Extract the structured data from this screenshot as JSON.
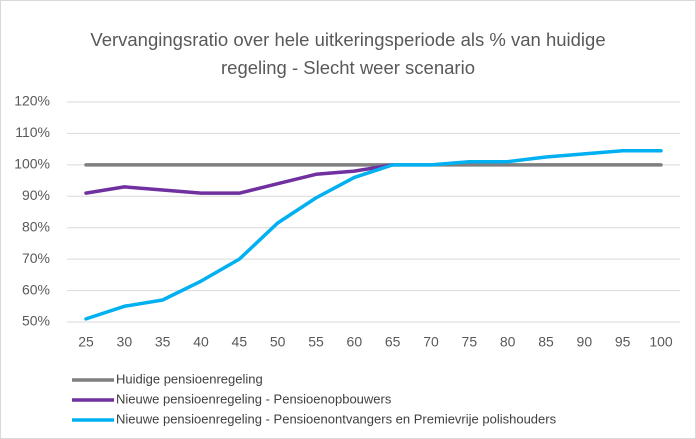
{
  "chart_data": {
    "type": "line",
    "title": "Vervangingsratio over hele uitkeringsperiode als % van huidige regeling - Slecht weer scenario",
    "categories": [
      "25",
      "30",
      "35",
      "40",
      "45",
      "50",
      "55",
      "60",
      "65",
      "70",
      "75",
      "80",
      "85",
      "90",
      "95",
      "100"
    ],
    "series": [
      {
        "name": "Huidige pensioenregeling",
        "color": "#7f7f7f",
        "values": [
          100,
          100,
          100,
          100,
          100,
          100,
          100,
          100,
          100,
          100,
          100,
          100,
          100,
          100,
          100,
          100
        ]
      },
      {
        "name": "Nieuwe pensioenregeling - Pensioenopbouwers",
        "color": "#7030a0",
        "values": [
          91,
          93,
          92,
          91,
          91,
          94,
          97,
          98,
          100,
          null,
          null,
          null,
          null,
          null,
          null,
          null
        ]
      },
      {
        "name": "Nieuwe pensioenregeling - Pensioenontvangers en Premievrije polishouders",
        "color": "#00b0f0",
        "values": [
          51,
          55,
          57,
          63,
          70,
          81.5,
          89.5,
          96,
          100,
          100,
          101,
          101,
          102.5,
          103.5,
          104.5,
          104.5
        ]
      }
    ],
    "ylim": [
      50,
      120
    ],
    "yticks": [
      {
        "value": 50,
        "label": "50%"
      },
      {
        "value": 60,
        "label": "60%"
      },
      {
        "value": 70,
        "label": "70%"
      },
      {
        "value": 80,
        "label": "80%"
      },
      {
        "value": 90,
        "label": "90%"
      },
      {
        "value": 100,
        "label": "100%"
      },
      {
        "value": 110,
        "label": "110%"
      },
      {
        "value": 120,
        "label": "120%"
      }
    ],
    "grid": true,
    "legend": "bottom"
  }
}
